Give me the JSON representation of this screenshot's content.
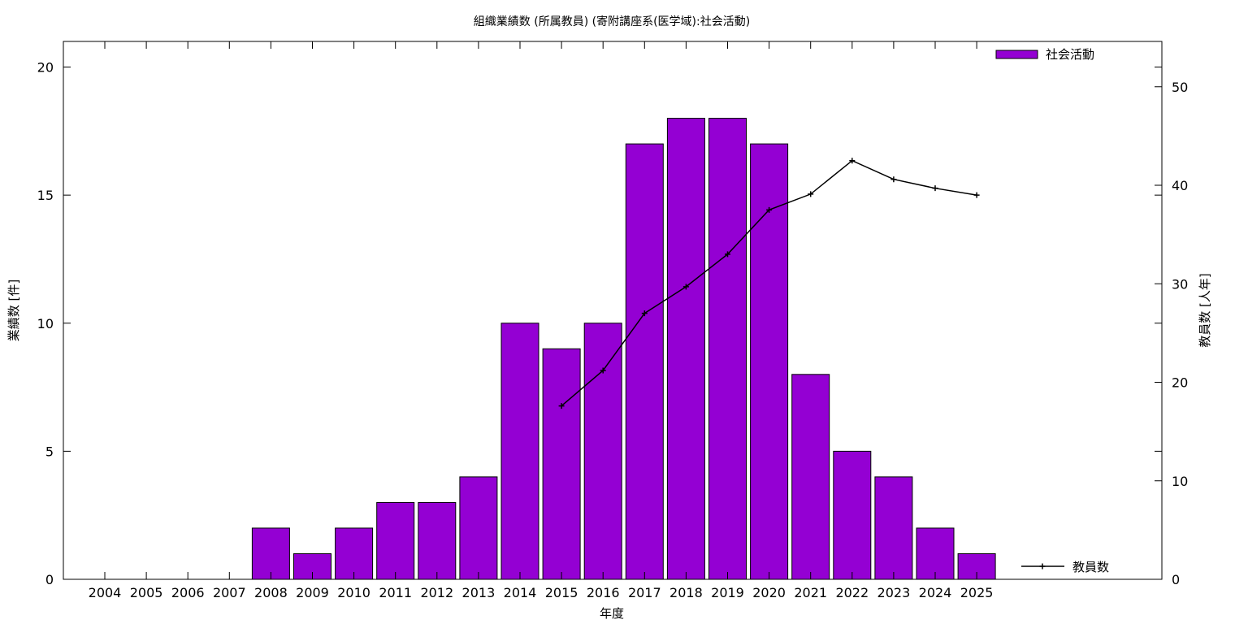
{
  "chart_data": {
    "type": "bar",
    "title": "組織業績数 (所属教員) (寄附講座系(医学域):社会活動)",
    "xlabel": "年度",
    "ylabel": "業績数 [件]",
    "y2label": "教員数 [人年]",
    "categories": [
      "2004",
      "2005",
      "2006",
      "2007",
      "2008",
      "2009",
      "2010",
      "2011",
      "2012",
      "2013",
      "2014",
      "2015",
      "2016",
      "2017",
      "2018",
      "2019",
      "2020",
      "2021",
      "2022",
      "2023",
      "2024",
      "2025"
    ],
    "ylim": [
      0,
      21
    ],
    "y2lim": [
      0,
      54.6
    ],
    "yticks": [
      0,
      5,
      10,
      15,
      20
    ],
    "y2ticks": [
      0,
      10,
      20,
      30,
      40,
      50
    ],
    "grid": false,
    "legend_placement": "top-right (bars), bottom-right (line)",
    "series": [
      {
        "name": "社会活動",
        "type": "bar",
        "axis": "left",
        "color": "#9400D3",
        "values": [
          0,
          0,
          0,
          0,
          2,
          1,
          2,
          3,
          3,
          4,
          10,
          9,
          10,
          17,
          18,
          18,
          17,
          8,
          5,
          4,
          2,
          1
        ]
      },
      {
        "name": "教員数",
        "type": "line",
        "axis": "right",
        "color": "#000000",
        "marker": "+",
        "values": [
          null,
          null,
          null,
          null,
          null,
          null,
          null,
          null,
          null,
          null,
          null,
          17.6,
          21.2,
          27.0,
          29.7,
          33.0,
          37.5,
          39.1,
          42.5,
          40.6,
          39.7,
          39.0
        ]
      }
    ]
  }
}
